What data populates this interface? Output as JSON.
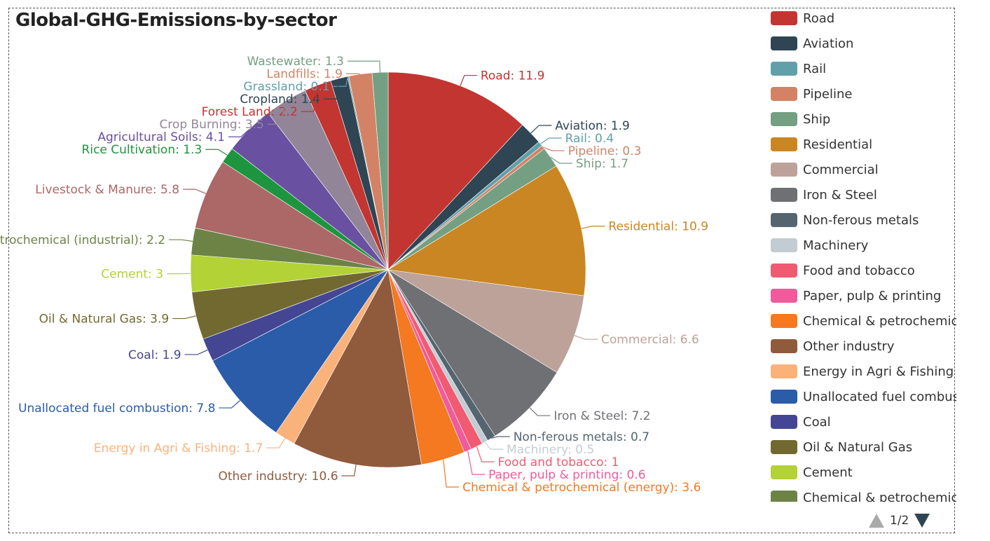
{
  "chart_data": {
    "type": "pie",
    "title": "Global-GHG-Emissions-by-sector",
    "slices": [
      {
        "name": "Road",
        "value": 11.9,
        "color": "#c23531"
      },
      {
        "name": "Aviation",
        "value": 1.9,
        "color": "#2f4554"
      },
      {
        "name": "Rail",
        "value": 0.4,
        "color": "#61a0a8"
      },
      {
        "name": "Pipeline",
        "value": 0.3,
        "color": "#d48265"
      },
      {
        "name": "Ship",
        "value": 1.7,
        "color": "#749f83"
      },
      {
        "name": "Residential",
        "value": 10.9,
        "color": "#ca8622"
      },
      {
        "name": "Commercial",
        "value": 6.6,
        "color": "#bda29a"
      },
      {
        "name": "Iron & Steel",
        "value": 7.2,
        "color": "#6e7074"
      },
      {
        "name": "Non-ferous metals",
        "value": 0.7,
        "color": "#546570"
      },
      {
        "name": "Machinery",
        "value": 0.5,
        "color": "#c4ccd3"
      },
      {
        "name": "Food and tobacco",
        "value": 1,
        "color": "#f05b72"
      },
      {
        "name": "Paper, pulp & printing",
        "value": 0.6,
        "color": "#ef5b9c"
      },
      {
        "name": "Chemical & petrochemical (energy)",
        "value": 3.6,
        "color": "#f47920"
      },
      {
        "name": "Other industry",
        "value": 10.6,
        "color": "#905a3d"
      },
      {
        "name": "Energy in Agri & Fishing",
        "value": 1.7,
        "color": "#fab27b"
      },
      {
        "name": "Unallocated fuel combustion",
        "value": 7.8,
        "color": "#2a5caa"
      },
      {
        "name": "Coal",
        "value": 1.9,
        "color": "#444693"
      },
      {
        "name": "Oil & Natural Gas",
        "value": 3.9,
        "color": "#726930"
      },
      {
        "name": "Cement",
        "value": 3,
        "color": "#b2d235"
      },
      {
        "name": "Chemical & petrochemical (industrial)",
        "value": 2.2,
        "color": "#6d8346"
      },
      {
        "name": "Livestock & Manure",
        "value": 5.8,
        "color": "#ac6767"
      },
      {
        "name": "Rice Cultivation",
        "value": 1.3,
        "color": "#1d953f"
      },
      {
        "name": "Agricultural Soils",
        "value": 4.1,
        "color": "#6950a1"
      },
      {
        "name": "Crop Burning",
        "value": 3.5,
        "color": "#918597"
      },
      {
        "name": "Forest Land",
        "value": 2.2,
        "color": "#c23531"
      },
      {
        "name": "Cropland",
        "value": 1.4,
        "color": "#2f4554"
      },
      {
        "name": "Grassland",
        "value": 0.1,
        "color": "#61a0a8"
      },
      {
        "name": "Landfills",
        "value": 1.9,
        "color": "#d48265"
      },
      {
        "name": "Wastewater",
        "value": 1.3,
        "color": "#749f83"
      }
    ],
    "legend_position": "right"
  },
  "legend": {
    "items": [
      "Road",
      "Aviation",
      "Rail",
      "Pipeline",
      "Ship",
      "Residential",
      "Commercial",
      "Iron & Steel",
      "Non-ferous metals",
      "Machinery",
      "Food and tobacco",
      "Paper, pulp & printing",
      "Chemical & petrochemical (energy)",
      "Other industry",
      "Energy in Agri & Fishing",
      "Unallocated fuel combustion",
      "Coal",
      "Oil & Natural Gas",
      "Cement",
      "Chemical & petrochemical (industrial)"
    ],
    "pager_text": "1/2"
  }
}
